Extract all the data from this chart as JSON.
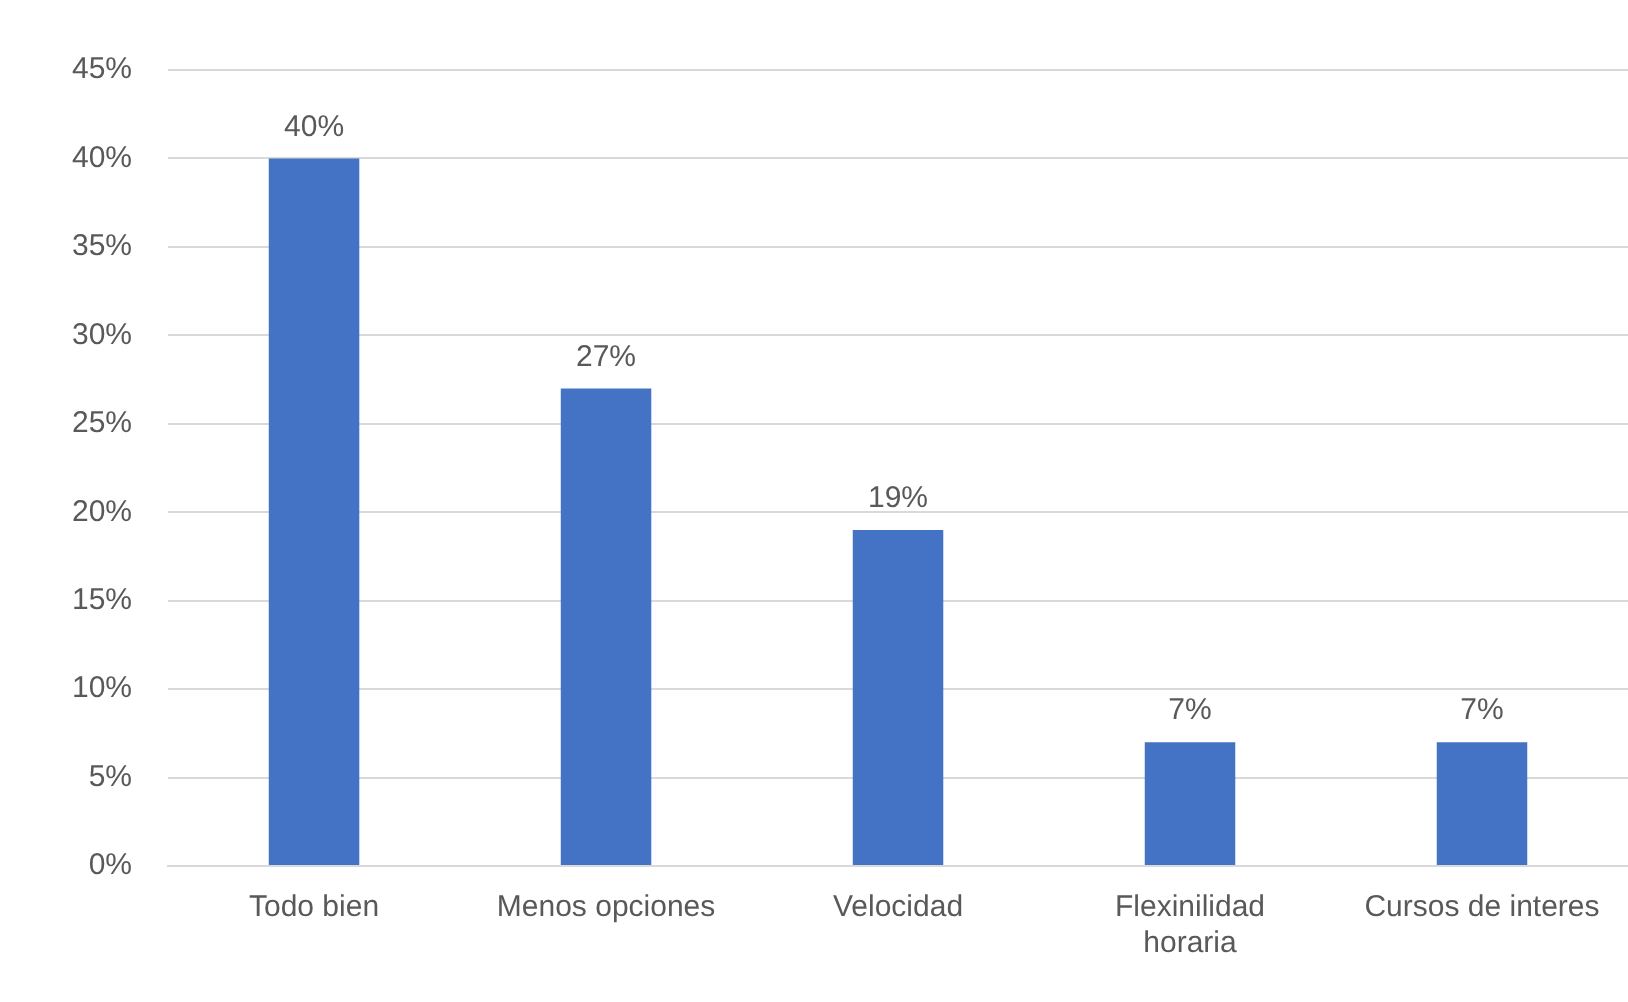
{
  "chart_data": {
    "type": "bar",
    "categories": [
      "Todo bien",
      "Menos opciones",
      "Velocidad",
      "Flexinilidad horaria",
      "Cursos de interes"
    ],
    "values": [
      40,
      27,
      19,
      7,
      7
    ],
    "color": "#4472c4",
    "ylim": [
      0,
      45
    ],
    "yticks": [
      {
        "value": 0,
        "label": "0%"
      },
      {
        "value": 5,
        "label": "5%"
      },
      {
        "value": 10,
        "label": "10%"
      },
      {
        "value": 15,
        "label": "15%"
      },
      {
        "value": 20,
        "label": "20%"
      },
      {
        "value": 25,
        "label": "25%"
      },
      {
        "value": 30,
        "label": "30%"
      },
      {
        "value": 35,
        "label": "35%"
      },
      {
        "value": 40,
        "label": "40%"
      },
      {
        "value": 45,
        "label": "45%"
      }
    ],
    "value_labels": [
      "40%",
      "27%",
      "19%",
      "7%",
      "7%"
    ],
    "grid": "y",
    "legend": false
  }
}
